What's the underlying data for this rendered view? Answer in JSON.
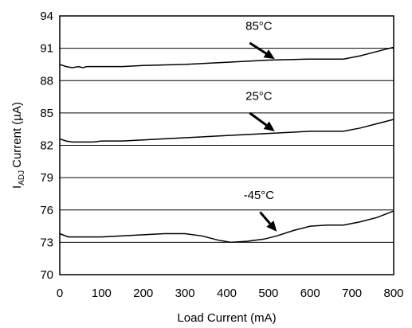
{
  "chart_data": {
    "type": "line",
    "title": "",
    "xlabel": "Load Current (mA)",
    "ylabel": "Current (µA)",
    "ylabel_prefix": "I",
    "ylabel_subscript": "ADJ",
    "xlim": [
      0,
      800
    ],
    "ylim": [
      70,
      94
    ],
    "xticks": [
      0,
      100,
      200,
      300,
      400,
      500,
      600,
      700,
      800
    ],
    "yticks": [
      70,
      73,
      76,
      79,
      82,
      85,
      88,
      91,
      94
    ],
    "grid": "horizontal",
    "legend": "none",
    "series": [
      {
        "name": "85°C",
        "x": [
          0,
          15,
          30,
          45,
          55,
          65,
          75,
          100,
          150,
          200,
          300,
          400,
          500,
          600,
          680,
          720,
          760,
          800
        ],
        "y": [
          89.5,
          89.3,
          89.2,
          89.3,
          89.2,
          89.3,
          89.3,
          89.3,
          89.3,
          89.4,
          89.5,
          89.7,
          89.9,
          90.0,
          90.0,
          90.3,
          90.7,
          91.1
        ]
      },
      {
        "name": "25°C",
        "x": [
          0,
          15,
          30,
          60,
          80,
          100,
          150,
          200,
          300,
          400,
          500,
          600,
          680,
          720,
          760,
          800
        ],
        "y": [
          82.6,
          82.4,
          82.3,
          82.3,
          82.3,
          82.4,
          82.4,
          82.5,
          82.7,
          82.9,
          83.1,
          83.3,
          83.3,
          83.6,
          84.0,
          84.4
        ]
      },
      {
        "name": "-45°C",
        "x": [
          0,
          20,
          50,
          100,
          150,
          200,
          250,
          300,
          340,
          380,
          410,
          450,
          490,
          520,
          560,
          600,
          640,
          680,
          720,
          760,
          800
        ],
        "y": [
          73.8,
          73.5,
          73.5,
          73.5,
          73.6,
          73.7,
          73.8,
          73.8,
          73.6,
          73.2,
          73.0,
          73.1,
          73.3,
          73.6,
          74.1,
          74.5,
          74.6,
          74.6,
          74.9,
          75.3,
          75.9
        ]
      }
    ],
    "annotations": [
      {
        "text": "85°C",
        "label_x": 500,
        "label_y": 92.7,
        "arrow_from": [
          455,
          91.5
        ],
        "arrow_to": [
          515,
          90.0
        ]
      },
      {
        "text": "25°C",
        "label_x": 500,
        "label_y": 86.2,
        "arrow_from": [
          455,
          85.0
        ],
        "arrow_to": [
          515,
          83.3
        ]
      },
      {
        "text": "-45°C",
        "label_x": 500,
        "label_y": 77.0,
        "arrow_from": [
          480,
          75.8
        ],
        "arrow_to": [
          520,
          74.0
        ]
      }
    ]
  }
}
